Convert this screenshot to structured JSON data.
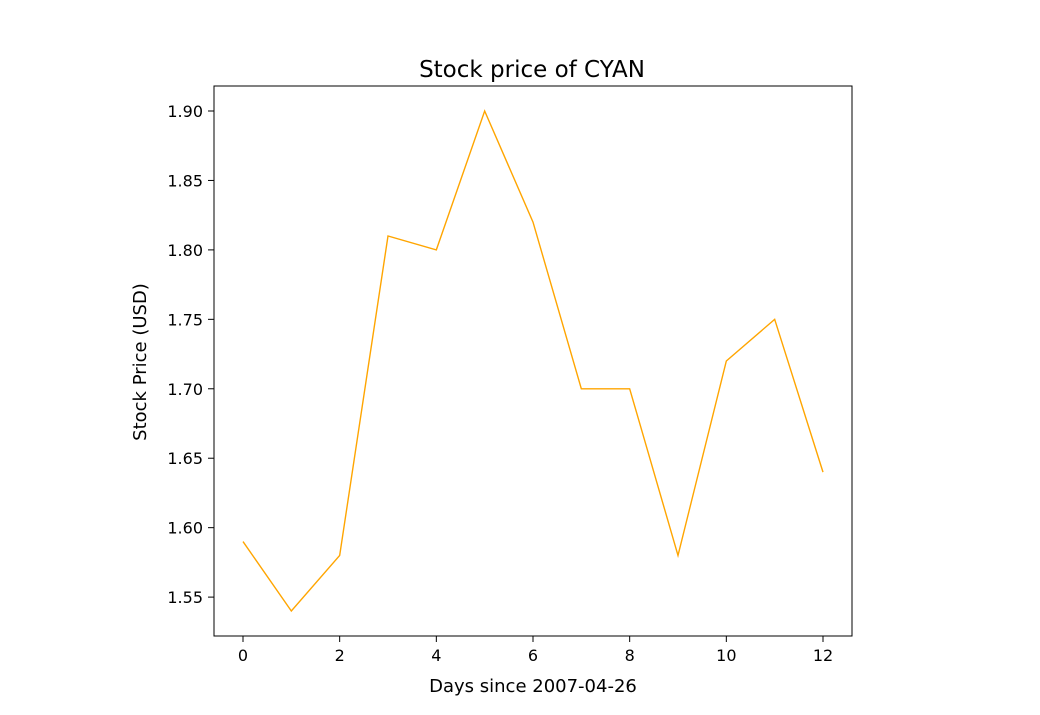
{
  "chart_data": {
    "type": "line",
    "title": "Stock price of CYAN",
    "xlabel": "Days since 2007-04-26",
    "ylabel": "Stock Price (USD)",
    "x": [
      0,
      1,
      2,
      3,
      4,
      5,
      6,
      7,
      8,
      9,
      10,
      11,
      12
    ],
    "series": [
      {
        "values": [
          1.59,
          1.54,
          1.58,
          1.81,
          1.8,
          1.9,
          1.82,
          1.7,
          1.7,
          1.58,
          1.72,
          1.75,
          1.64
        ],
        "color": "#ffa500"
      }
    ],
    "xlim": [
      -0.6,
      12.6
    ],
    "ylim": [
      1.522,
      1.918
    ],
    "xticks": [
      0,
      2,
      4,
      6,
      8,
      10,
      12
    ],
    "xtick_labels": [
      "0",
      "2",
      "4",
      "6",
      "8",
      "10",
      "12"
    ],
    "yticks": [
      1.55,
      1.6,
      1.65,
      1.7,
      1.75,
      1.8,
      1.85,
      1.9
    ],
    "ytick_labels": [
      "1.55",
      "1.60",
      "1.65",
      "1.70",
      "1.75",
      "1.80",
      "1.85",
      "1.90"
    ],
    "grid": false,
    "legend": false
  }
}
